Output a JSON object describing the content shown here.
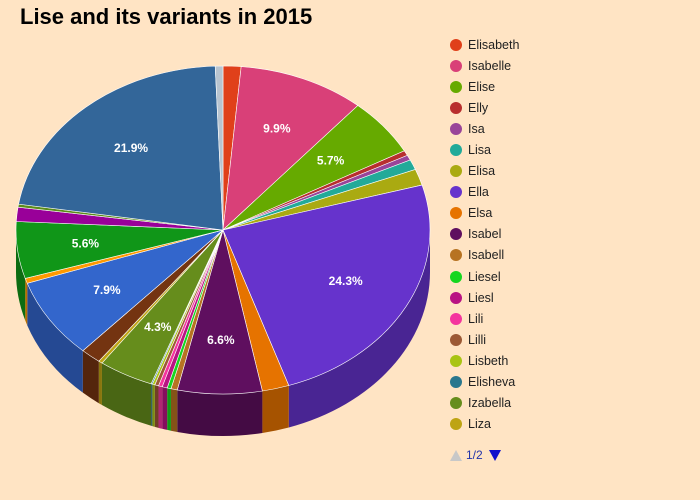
{
  "chart_data": {
    "type": "pie",
    "title": "Lise and its variants in 2015",
    "start_angle_deg": -90,
    "slices": [
      {
        "name": "Elisabeth",
        "value": 1.4,
        "color": "#e0401a",
        "label": ""
      },
      {
        "name": "Isabelle",
        "value": 9.9,
        "color": "#d94078",
        "label": "9.9%"
      },
      {
        "name": "Elise",
        "value": 5.7,
        "color": "#66aa00",
        "label": "5.7%"
      },
      {
        "name": "Elly",
        "value": 0.5,
        "color": "#b82e2e",
        "label": ""
      },
      {
        "name": "Isa",
        "value": 0.5,
        "color": "#994499",
        "label": ""
      },
      {
        "name": "Lisa",
        "value": 1.0,
        "color": "#22aa99",
        "label": ""
      },
      {
        "name": "Elisa",
        "value": 1.6,
        "color": "#aaaa11",
        "label": ""
      },
      {
        "name": "Ella",
        "value": 24.3,
        "color": "#6633cc",
        "label": "24.3%"
      },
      {
        "name": "Elsa",
        "value": 2.1,
        "color": "#e67300",
        "label": ""
      },
      {
        "name": "Isabel",
        "value": 6.6,
        "color": "#5f0f5f",
        "label": "6.6%"
      },
      {
        "name": "Isabell",
        "value": 0.5,
        "color": "#b77322",
        "label": ""
      },
      {
        "name": "Liesel",
        "value": 0.3,
        "color": "#16d620",
        "label": ""
      },
      {
        "name": "Liesl",
        "value": 0.4,
        "color": "#b91383",
        "label": ""
      },
      {
        "name": "Lili",
        "value": 0.3,
        "color": "#f4359e",
        "label": ""
      },
      {
        "name": "Lilli",
        "value": 0.3,
        "color": "#9c5935",
        "label": ""
      },
      {
        "name": "Lisbeth",
        "value": 0.2,
        "color": "#a9c413",
        "label": ""
      },
      {
        "name": "Elisheva",
        "value": 0.1,
        "color": "#2a778d",
        "label": ""
      },
      {
        "name": "Izabella",
        "value": 4.3,
        "color": "#668d1c",
        "label": "4.3%"
      },
      {
        "name": "Liza",
        "value": 0.3,
        "color": "#bea413",
        "label": ""
      },
      {
        "name": "",
        "value": 1.6,
        "color": "#743411",
        "label": ""
      },
      {
        "name": "",
        "value": 7.9,
        "color": "#3366cc",
        "label": "7.9%"
      },
      {
        "name": "",
        "value": 0.5,
        "color": "#ff9900",
        "label": ""
      },
      {
        "name": "",
        "value": 5.6,
        "color": "#109618",
        "label": "5.6%"
      },
      {
        "name": "",
        "value": 1.4,
        "color": "#990099",
        "label": ""
      },
      {
        "name": "",
        "value": 0.3,
        "color": "#5b8c1a",
        "label": ""
      },
      {
        "name": "",
        "value": 21.9,
        "color": "#336699",
        "label": "21.9%"
      },
      {
        "name": "",
        "value": 0.6,
        "color": "#b8c4d0",
        "label": ""
      }
    ],
    "legend_placement": "right"
  },
  "legend": {
    "pager_text": "1/2"
  }
}
